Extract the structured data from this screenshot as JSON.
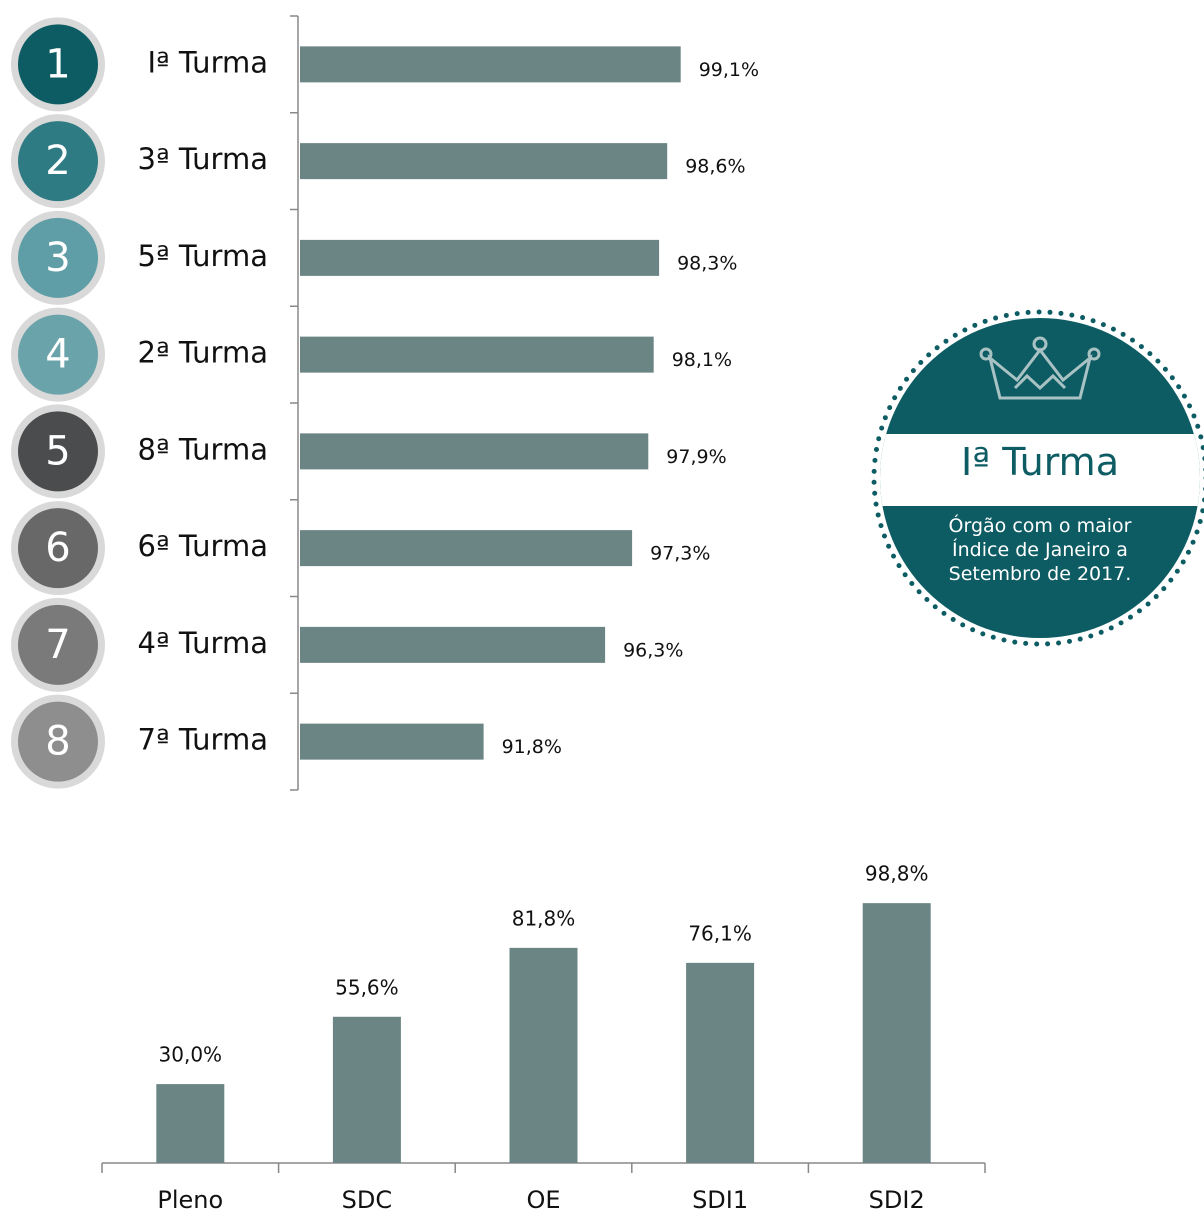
{
  "chart_data": [
    {
      "type": "barh",
      "ranks": [
        "1",
        "2",
        "3",
        "4",
        "5",
        "6",
        "7",
        "8"
      ],
      "rank_colors": [
        "#0d5c63",
        "#2e7b83",
        "#5f9ea6",
        "#6aa3aa",
        "#4a4c4e",
        "#686868",
        "#7a7a7a",
        "#8e8e8e"
      ],
      "categories": [
        "Iª Turma",
        "3ª Turma",
        "5ª Turma",
        "2ª Turma",
        "8ª Turma",
        "6ª Turma",
        "4ª Turma",
        "7ª Turma"
      ],
      "values": [
        99.1,
        98.6,
        98.3,
        98.1,
        97.9,
        97.3,
        96.3,
        91.8
      ],
      "value_labels": [
        "99,1%",
        "98,6%",
        "98,3%",
        "98,1%",
        "97,9%",
        "97,3%",
        "96,3%",
        "91,8%"
      ],
      "color": "#6b8584",
      "xlim": [
        85,
        110
      ]
    },
    {
      "type": "bar",
      "categories": [
        "Pleno",
        "SDC",
        "OE",
        "SDI1",
        "SDI2"
      ],
      "values": [
        30.0,
        55.6,
        81.8,
        76.1,
        98.8
      ],
      "value_labels": [
        "30,0%",
        "55,6%",
        "81,8%",
        "76,1%",
        "98,8%"
      ],
      "color": "#6b8584",
      "ylim": [
        0,
        100
      ]
    }
  ],
  "badge": {
    "title": "Iª Turma",
    "text": "Órgão com o maior Índice de Janeiro a Setembro de 2017."
  }
}
